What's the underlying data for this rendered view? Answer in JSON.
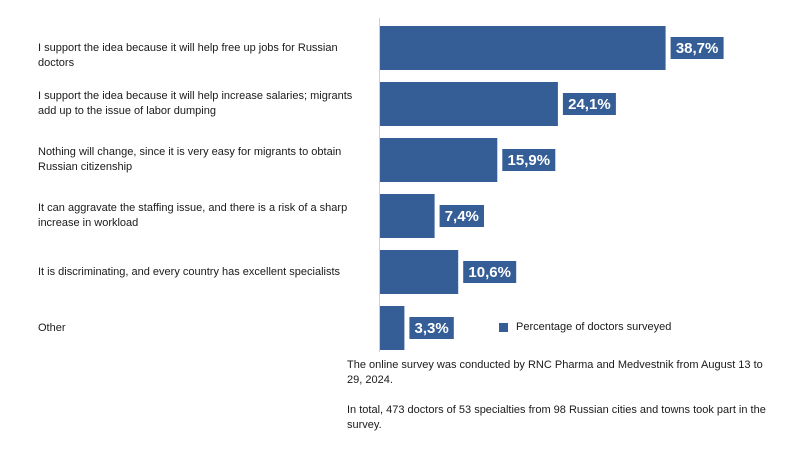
{
  "chart_data": {
    "type": "bar",
    "orientation": "horizontal",
    "categories": [
      "I support the idea because it will help free up jobs for Russian doctors",
      "I support the idea because it will help increase salaries; migrants add up to the issue of labor dumping",
      "Nothing will change, since it is very easy for migrants to obtain Russian citizenship",
      "It can aggravate the staffing issue, and there is a risk of a sharp increase in workload",
      "It is discriminating, and every country has excellent specialists",
      "Other"
    ],
    "values": [
      38.7,
      24.1,
      15.9,
      7.4,
      10.6,
      3.3
    ],
    "data_labels": [
      "38,7%",
      "24,1%",
      "15,9%",
      "7,4%",
      "10,6%",
      "3,3%"
    ],
    "series": [
      {
        "name": "Percentage of doctors surveyed",
        "values": [
          38.7,
          24.1,
          15.9,
          7.4,
          10.6,
          3.3
        ]
      }
    ],
    "bar_color": "#355e97",
    "label_color": "#ffffff",
    "grid": false,
    "legend_position": "bottom-right",
    "xlim": [
      0,
      42.5
    ]
  },
  "notes": {
    "survey_dates": "The online survey was conducted by RNC Pharma and Medvestnik from August 13 to 29, 2024.",
    "participants": "In total, 473 doctors of 53 specialties from 98 Russian cities and towns took part in the survey."
  }
}
